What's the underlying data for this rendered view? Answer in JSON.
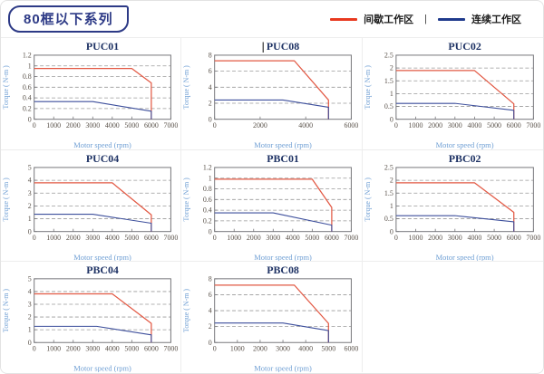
{
  "page": {
    "title": "80框以下系列"
  },
  "legend": {
    "separator": "|",
    "items": [
      {
        "label": "间歇工作区",
        "color": "#e8391f"
      },
      {
        "label": "连续工作区",
        "color": "#1f3a8c"
      }
    ]
  },
  "colors": {
    "red_line": "#e25843",
    "blue_line": "#3d4f9c",
    "grid": "#9a9a9a",
    "axis_border": "#76767a",
    "tick_label": "#5a524a",
    "axis_label": "#6f9fd4",
    "chart_title": "#1e3264"
  },
  "chart_data": [
    {
      "name": "PUC01",
      "type": "line",
      "xlabel": "Motor speed (rpm)",
      "ylabel": "Torque ( N-m )",
      "xlim": [
        0,
        7000
      ],
      "xticks": [
        0,
        1000,
        2000,
        3000,
        4000,
        5000,
        6000,
        7000
      ],
      "ylim": [
        0,
        1.2
      ],
      "yticks": [
        0,
        0.2,
        0.4,
        0.6,
        0.8,
        1,
        1.2
      ],
      "series": [
        {
          "name": "间歇工作区",
          "colorKey": "red_line",
          "points": [
            [
              0,
              0.95
            ],
            [
              5000,
              0.95
            ],
            [
              6000,
              0.68
            ],
            [
              6000,
              0
            ]
          ]
        },
        {
          "name": "连续工作区",
          "colorKey": "blue_line",
          "points": [
            [
              0,
              0.33
            ],
            [
              3000,
              0.33
            ],
            [
              6000,
              0.15
            ],
            [
              6000,
              0
            ]
          ]
        }
      ]
    },
    {
      "name": "PUC08",
      "type": "line",
      "cursor": true,
      "xlabel": "Motor speed (rpm)",
      "ylabel": "Torque ( N-m )",
      "xlim": [
        0,
        6000
      ],
      "xticks": [
        0,
        2000,
        4000,
        6000
      ],
      "ylim": [
        0,
        8
      ],
      "yticks": [
        0,
        2,
        4,
        6,
        8
      ],
      "series": [
        {
          "name": "间歇工作区",
          "colorKey": "red_line",
          "points": [
            [
              0,
              7.3
            ],
            [
              3500,
              7.3
            ],
            [
              5000,
              2.4
            ],
            [
              5000,
              0
            ]
          ]
        },
        {
          "name": "连续工作区",
          "colorKey": "blue_line",
          "points": [
            [
              0,
              2.4
            ],
            [
              3000,
              2.4
            ],
            [
              5000,
              1.5
            ],
            [
              5000,
              0
            ]
          ]
        }
      ]
    },
    {
      "name": "PUC02",
      "type": "line",
      "xlabel": "Motor speed (rpm)",
      "ylabel": "Torque ( N-m )",
      "xlim": [
        0,
        7000
      ],
      "xticks": [
        0,
        1000,
        2000,
        3000,
        4000,
        5000,
        6000,
        7000
      ],
      "ylim": [
        0,
        2.5
      ],
      "yticks": [
        0,
        0.5,
        1,
        1.5,
        2,
        2.5
      ],
      "series": [
        {
          "name": "间歇工作区",
          "colorKey": "red_line",
          "points": [
            [
              0,
              1.9
            ],
            [
              4000,
              1.9
            ],
            [
              6000,
              0.6
            ],
            [
              6000,
              0
            ]
          ]
        },
        {
          "name": "连续工作区",
          "colorKey": "blue_line",
          "points": [
            [
              0,
              0.62
            ],
            [
              3000,
              0.62
            ],
            [
              6000,
              0.35
            ],
            [
              6000,
              0
            ]
          ]
        }
      ]
    },
    {
      "name": "PUC04",
      "type": "line",
      "xlabel": "Motor speed (rpm)",
      "ylabel": "Torque ( N-m )",
      "xlim": [
        0,
        7000
      ],
      "xticks": [
        0,
        1000,
        2000,
        3000,
        4000,
        5000,
        6000,
        7000
      ],
      "ylim": [
        0,
        5
      ],
      "yticks": [
        0,
        1,
        2,
        3,
        4,
        5
      ],
      "series": [
        {
          "name": "间歇工作区",
          "colorKey": "red_line",
          "points": [
            [
              0,
              3.8
            ],
            [
              4000,
              3.8
            ],
            [
              6000,
              1.3
            ],
            [
              6000,
              0
            ]
          ]
        },
        {
          "name": "连续工作区",
          "colorKey": "blue_line",
          "points": [
            [
              0,
              1.35
            ],
            [
              3000,
              1.35
            ],
            [
              6000,
              0.65
            ],
            [
              6000,
              0
            ]
          ]
        }
      ]
    },
    {
      "name": "PBC01",
      "type": "line",
      "xlabel": "Motor speed (rpm)",
      "ylabel": "Torque ( N-m )",
      "xlim": [
        0,
        7000
      ],
      "xticks": [
        0,
        1000,
        2000,
        3000,
        4000,
        5000,
        6000,
        7000
      ],
      "ylim": [
        0,
        1.2
      ],
      "yticks": [
        0,
        0.2,
        0.4,
        0.6,
        0.8,
        1,
        1.2
      ],
      "series": [
        {
          "name": "间歇工作区",
          "colorKey": "red_line",
          "points": [
            [
              0,
              0.98
            ],
            [
              5000,
              0.98
            ],
            [
              6000,
              0.45
            ],
            [
              6000,
              0
            ]
          ]
        },
        {
          "name": "连续工作区",
          "colorKey": "blue_line",
          "points": [
            [
              0,
              0.35
            ],
            [
              3000,
              0.35
            ],
            [
              6000,
              0.12
            ],
            [
              6000,
              0
            ]
          ]
        }
      ]
    },
    {
      "name": "PBC02",
      "type": "line",
      "xlabel": "Motor speed (rpm)",
      "ylabel": "Torque ( N-m )",
      "xlim": [
        0,
        7000
      ],
      "xticks": [
        0,
        1000,
        2000,
        3000,
        4000,
        5000,
        6000,
        7000
      ],
      "ylim": [
        0,
        2.5
      ],
      "yticks": [
        0,
        0.5,
        1,
        1.5,
        2,
        2.5
      ],
      "series": [
        {
          "name": "间歇工作区",
          "colorKey": "red_line",
          "points": [
            [
              0,
              1.9
            ],
            [
              4000,
              1.9
            ],
            [
              6000,
              0.75
            ],
            [
              6000,
              0
            ]
          ]
        },
        {
          "name": "连续工作区",
          "colorKey": "blue_line",
          "points": [
            [
              0,
              0.62
            ],
            [
              3000,
              0.62
            ],
            [
              6000,
              0.38
            ],
            [
              6000,
              0
            ]
          ]
        }
      ]
    },
    {
      "name": "PBC04",
      "type": "line",
      "xlabel": "Motor speed (rpm)",
      "ylabel": "Torque ( N-m )",
      "xlim": [
        0,
        7000
      ],
      "xticks": [
        0,
        1000,
        2000,
        3000,
        4000,
        5000,
        6000,
        7000
      ],
      "ylim": [
        0,
        5
      ],
      "yticks": [
        0,
        1,
        2,
        3,
        4,
        5
      ],
      "series": [
        {
          "name": "间歇工作区",
          "colorKey": "red_line",
          "points": [
            [
              0,
              3.82
            ],
            [
              4000,
              3.82
            ],
            [
              6000,
              1.5
            ],
            [
              6000,
              0
            ]
          ]
        },
        {
          "name": "连续工作区",
          "colorKey": "blue_line",
          "points": [
            [
              0,
              1.27
            ],
            [
              3200,
              1.27
            ],
            [
              6000,
              0.6
            ],
            [
              6000,
              0
            ]
          ]
        }
      ]
    },
    {
      "name": "PBC08",
      "type": "line",
      "xlabel": "Motor speed (rpm)",
      "ylabel": "Torque ( N-m )",
      "xlim": [
        0,
        6000
      ],
      "xticks": [
        0,
        1000,
        2000,
        3000,
        4000,
        5000,
        6000
      ],
      "ylim": [
        0,
        8
      ],
      "yticks": [
        0,
        2,
        4,
        6,
        8
      ],
      "series": [
        {
          "name": "间歇工作区",
          "colorKey": "red_line",
          "points": [
            [
              0,
              7.2
            ],
            [
              3500,
              7.2
            ],
            [
              5000,
              2.4
            ],
            [
              5000,
              0
            ]
          ]
        },
        {
          "name": "连续工作区",
          "colorKey": "blue_line",
          "points": [
            [
              0,
              2.45
            ],
            [
              3000,
              2.45
            ],
            [
              5000,
              1.5
            ],
            [
              5000,
              0
            ]
          ]
        }
      ]
    }
  ]
}
